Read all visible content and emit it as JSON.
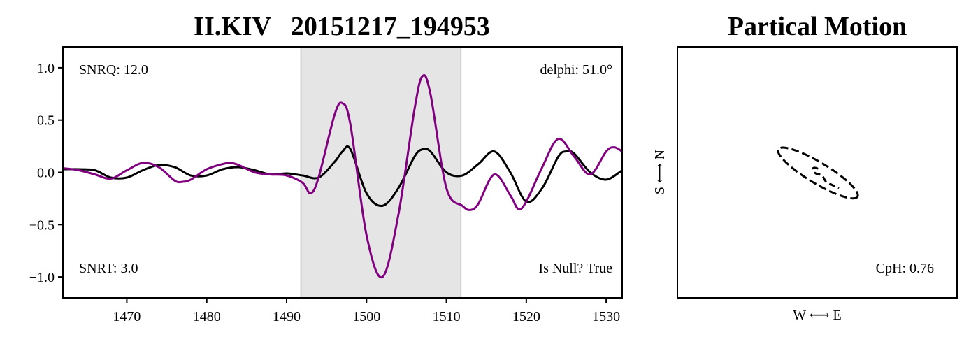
{
  "chart_data": [
    {
      "type": "line",
      "title": "II.KIV   20151217_194953",
      "xlim": [
        1462,
        1532
      ],
      "ylim": [
        -1.2,
        1.2
      ],
      "xticks": [
        1470,
        1480,
        1490,
        1500,
        1510,
        1520,
        1530
      ],
      "xtick_labels": [
        "1470",
        "1480",
        "1490",
        "1500",
        "1510",
        "1520",
        "1530"
      ],
      "yticks": [
        1.0,
        0.5,
        0.0,
        -0.5,
        -1.0
      ],
      "ytick_labels": [
        "1.0",
        "0.5",
        "0.0",
        "−0.5",
        "−1.0"
      ],
      "shaded_window": [
        1491.8,
        1511.8
      ],
      "annotations": {
        "snrq": "SNRQ: 12.0",
        "delphi": "delphi: 51.0°",
        "snrt": "SNRT: 3.0",
        "is_null": "Is Null? True"
      },
      "series": [
        {
          "color": "#000000",
          "x": [
            1462,
            1464,
            1466,
            1468,
            1470,
            1472,
            1474,
            1476,
            1478,
            1480,
            1482,
            1484,
            1486,
            1488,
            1490,
            1492,
            1494,
            1496,
            1497,
            1498,
            1500,
            1502,
            1504,
            1506,
            1507,
            1508,
            1510,
            1512,
            1514,
            1516,
            1518,
            1520,
            1522,
            1524,
            1525,
            1526,
            1528,
            1530,
            1532
          ],
          "y": [
            0.03,
            0.03,
            0.02,
            -0.05,
            -0.05,
            0.02,
            0.07,
            0.05,
            -0.03,
            -0.03,
            0.03,
            0.05,
            0.02,
            -0.02,
            -0.01,
            -0.03,
            -0.05,
            0.1,
            0.2,
            0.22,
            -0.2,
            -0.32,
            -0.15,
            0.15,
            0.22,
            0.2,
            0.0,
            -0.03,
            0.08,
            0.2,
            0.0,
            -0.28,
            -0.15,
            0.15,
            0.2,
            0.18,
            0.0,
            -0.07,
            0.02
          ]
        },
        {
          "color": "#800080",
          "x": [
            1462,
            1464,
            1466,
            1468,
            1470,
            1472,
            1474,
            1476,
            1477,
            1478,
            1480,
            1482,
            1483,
            1484,
            1486,
            1488,
            1490,
            1492,
            1493,
            1494,
            1496,
            1497,
            1498,
            1500,
            1502,
            1504,
            1506,
            1507,
            1508,
            1510,
            1512,
            1513,
            1514,
            1516,
            1518,
            1519,
            1520,
            1522,
            1524,
            1526,
            1528,
            1530,
            1531,
            1532
          ],
          "y": [
            0.04,
            0.02,
            -0.02,
            -0.06,
            0.02,
            0.09,
            0.05,
            -0.08,
            -0.09,
            -0.07,
            0.03,
            0.08,
            0.09,
            0.07,
            0.0,
            -0.02,
            -0.03,
            -0.1,
            -0.2,
            -0.05,
            0.55,
            0.66,
            0.45,
            -0.6,
            -1.0,
            -0.4,
            0.6,
            0.92,
            0.75,
            -0.15,
            -0.32,
            -0.36,
            -0.3,
            -0.02,
            -0.22,
            -0.35,
            -0.28,
            0.05,
            0.32,
            0.15,
            -0.02,
            0.2,
            0.24,
            0.2
          ]
        }
      ]
    },
    {
      "type": "scatter",
      "title": "Partical Motion",
      "xlabel": "W ⟷ E",
      "ylabel": "S ⟷ N",
      "annotation": "CpH: 0.76",
      "ellipse": {
        "cx": 0.005,
        "cy": -0.005,
        "rx": 0.33,
        "ry": 0.075,
        "angle_deg": 31
      },
      "xlim": [
        -1.0,
        1.0
      ],
      "ylim": [
        -1.0,
        1.0
      ],
      "color": "#000000",
      "linestyle": "dashed"
    }
  ]
}
